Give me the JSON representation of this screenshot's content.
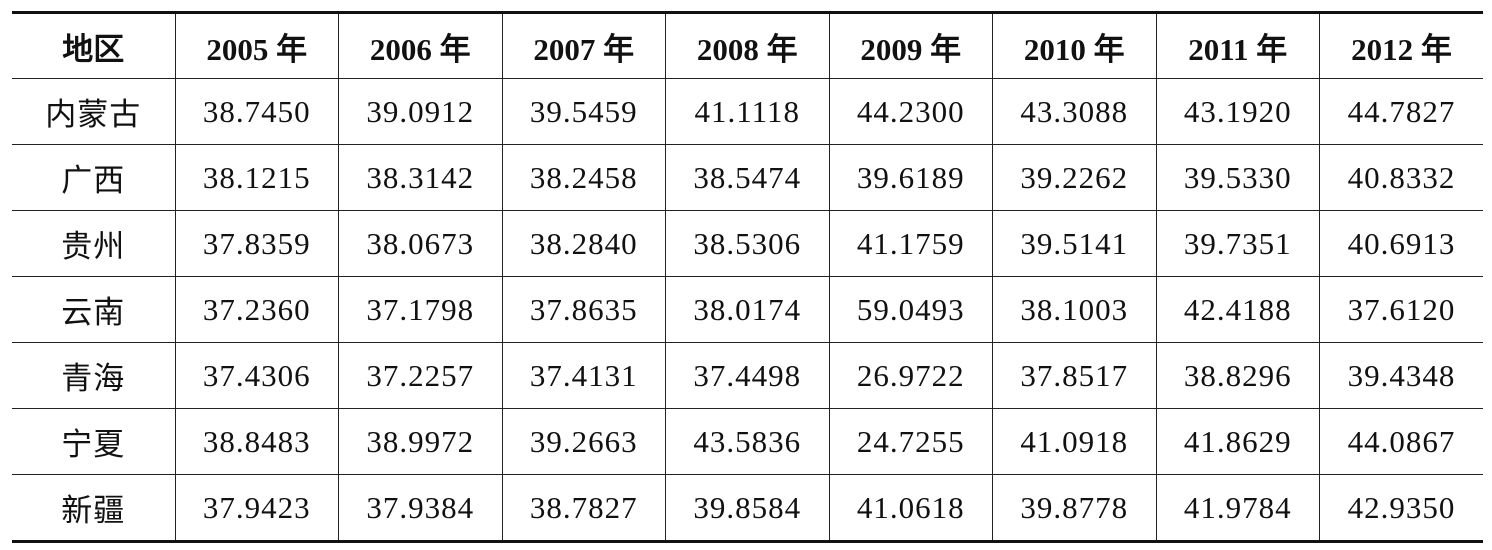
{
  "table": {
    "header": [
      "地区",
      "2005 年",
      "2006 年",
      "2007 年",
      "2008 年",
      "2009 年",
      "2010 年",
      "2011 年",
      "2012 年"
    ],
    "rows": [
      [
        "内蒙古",
        "38.7450",
        "39.0912",
        "39.5459",
        "41.1118",
        "44.2300",
        "43.3088",
        "43.1920",
        "44.7827"
      ],
      [
        "广西",
        "38.1215",
        "38.3142",
        "38.2458",
        "38.5474",
        "39.6189",
        "39.2262",
        "39.5330",
        "40.8332"
      ],
      [
        "贵州",
        "37.8359",
        "38.0673",
        "38.2840",
        "38.5306",
        "41.1759",
        "39.5141",
        "39.7351",
        "40.6913"
      ],
      [
        "云南",
        "37.2360",
        "37.1798",
        "37.8635",
        "38.0174",
        "59.0493",
        "38.1003",
        "42.4188",
        "37.6120"
      ],
      [
        "青海",
        "37.4306",
        "37.2257",
        "37.4131",
        "37.4498",
        "26.9722",
        "37.8517",
        "38.8296",
        "39.4348"
      ],
      [
        "宁夏",
        "38.8483",
        "38.9972",
        "39.2663",
        "43.5836",
        "24.7255",
        "41.0918",
        "41.8629",
        "44.0867"
      ],
      [
        "新疆",
        "37.9423",
        "37.9384",
        "38.7827",
        "39.8584",
        "41.0618",
        "39.8778",
        "41.9784",
        "42.9350"
      ]
    ]
  }
}
